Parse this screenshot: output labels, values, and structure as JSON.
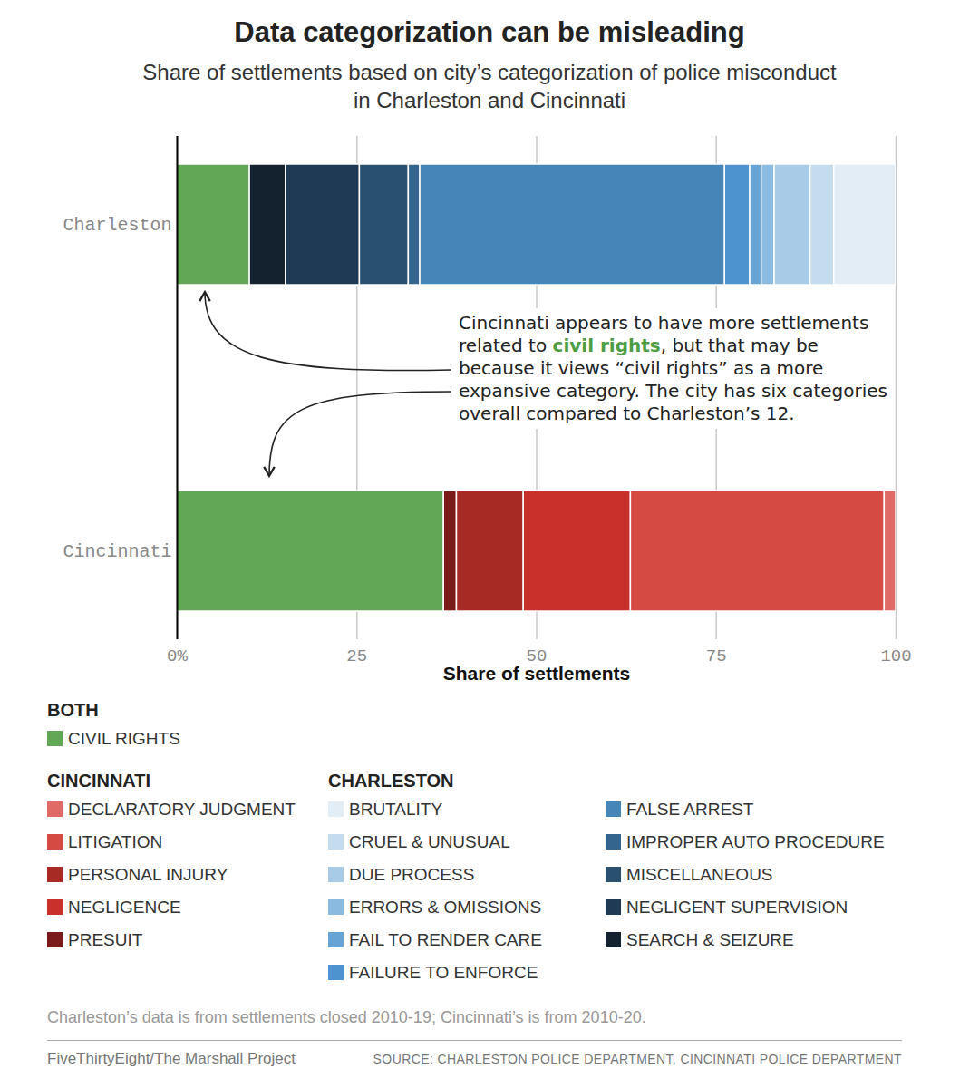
{
  "chart_data": {
    "type": "bar",
    "orientation": "horizontal",
    "stacked": true,
    "grid": true,
    "title": "Data categorization can be misleading",
    "subtitle": "Share of settlements based on city’s categorization of police misconduct in Charleston and Cincinnati",
    "x_label": "Share of settlements",
    "categories": [
      "Charleston",
      "Cincinnati"
    ],
    "xlim": [
      0,
      100
    ],
    "xticks": [
      {
        "value": 0,
        "label": "0%"
      },
      25,
      50,
      75,
      100
    ],
    "series": [
      {
        "name": "CIVIL RIGHTS",
        "color": "#62a755",
        "values": [
          10.1,
          37.1
        ]
      },
      {
        "name": "SEARCH & SEIZURE",
        "color": "#14222f",
        "values": [
          5.0,
          null
        ]
      },
      {
        "name": "NEGLIGENT SUPERVISION",
        "color": "#1f3a54",
        "values": [
          10.3,
          null
        ]
      },
      {
        "name": "MISCELLANEOUS",
        "color": "#2a5070",
        "values": [
          6.8,
          null
        ]
      },
      {
        "name": "IMPROPER AUTO PROCEDURE",
        "color": "#33658f",
        "values": [
          1.6,
          null
        ]
      },
      {
        "name": "FALSE ARREST",
        "color": "#4585b8",
        "values": [
          42.4,
          null
        ]
      },
      {
        "name": "FAILURE TO ENFORCE",
        "color": "#4d93cf",
        "values": [
          3.5,
          null
        ]
      },
      {
        "name": "FAIL TO RENDER CARE",
        "color": "#67a4d6",
        "values": [
          1.6,
          null
        ]
      },
      {
        "name": "ERRORS & OMISSIONS",
        "color": "#8bbae0",
        "values": [
          1.8,
          null
        ]
      },
      {
        "name": "DUE PROCESS",
        "color": "#a8cbe8",
        "values": [
          5.0,
          null
        ]
      },
      {
        "name": "CRUEL & UNUSUAL",
        "color": "#c5dcef",
        "values": [
          3.3,
          null
        ]
      },
      {
        "name": "BRUTALITY",
        "color": "#e3edf6",
        "values": [
          8.6,
          null
        ]
      },
      {
        "name": "PRESUIT",
        "color": "#7b1a1a",
        "values": [
          null,
          1.8
        ]
      },
      {
        "name": "PERSONAL INJURY",
        "color": "#a82a24",
        "values": [
          null,
          9.3
        ]
      },
      {
        "name": "NEGLIGENCE",
        "color": "#c8302b",
        "values": [
          null,
          14.9
        ]
      },
      {
        "name": "LITIGATION",
        "color": "#d64a44",
        "values": [
          null,
          35.3
        ]
      },
      {
        "name": "DECLARATORY JUDGMENT",
        "color": "#e06b66",
        "values": [
          null,
          1.6
        ]
      }
    ],
    "annotation": {
      "text": "Cincinnati appears to have more settlements related to civil rights, but that may be because it views “civil rights” as a more expansive category. The city has six categories overall compared to Charleston’s 12.",
      "highlight": "civil rights"
    },
    "legend_groups": [
      {
        "title": "BOTH",
        "entries": [
          "CIVIL RIGHTS"
        ]
      },
      {
        "title": "CINCINNATI",
        "entries": [
          "DECLARATORY JUDGMENT",
          "LITIGATION",
          "PERSONAL INJURY",
          "NEGLIGENCE",
          "PRESUIT"
        ]
      },
      {
        "title": "CHARLESTON",
        "entries": [
          "BRUTALITY",
          "CRUEL & UNUSUAL",
          "DUE PROCESS",
          "ERRORS & OMISSIONS",
          "FAIL TO RENDER CARE",
          "FAILURE TO ENFORCE",
          "FALSE ARREST",
          "IMPROPER AUTO PROCEDURE",
          "MISCELLANEOUS",
          "NEGLIGENT SUPERVISION",
          "SEARCH & SEIZURE"
        ]
      }
    ],
    "note": "Charleston’s data is from settlements closed 2010-19; Cincinnati’s is from 2010-20.",
    "credit": "FiveThirtyEight/The Marshall Project",
    "source": "SOURCE: CHARLESTON POLICE DEPARTMENT, CINCINNATI POLICE DEPARTMENT"
  }
}
